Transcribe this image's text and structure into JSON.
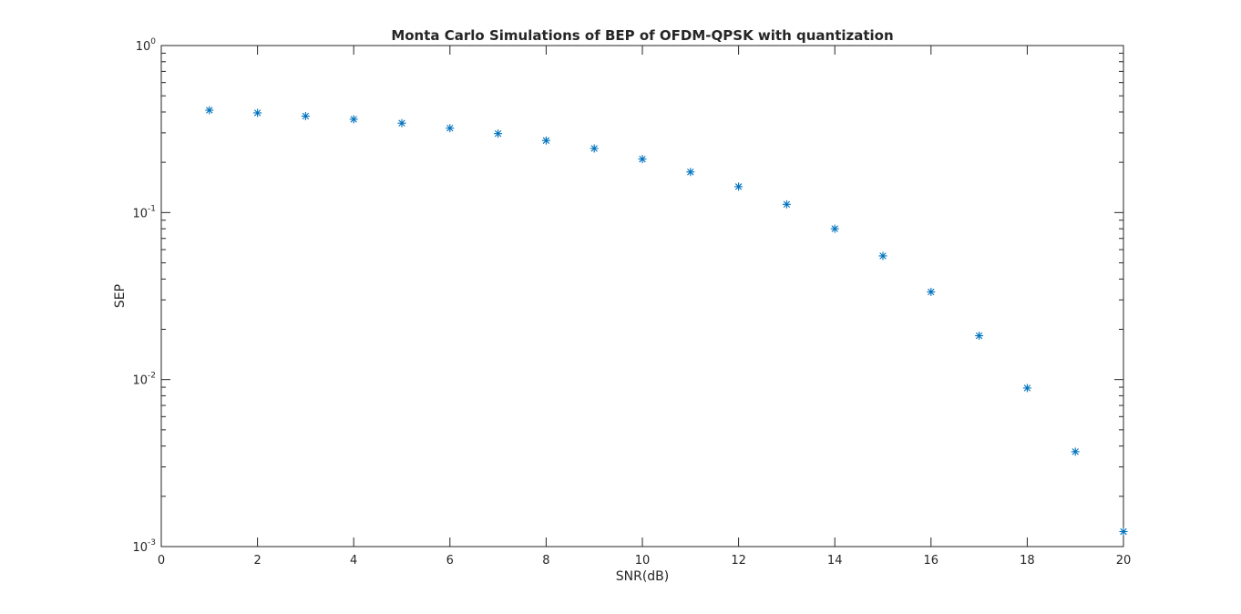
{
  "chart_data": {
    "type": "scatter",
    "title": "Monta Carlo Simulations of BEP of OFDM-QPSK with quantization",
    "xlabel": "SNR(dB)",
    "ylabel": "SEP",
    "xlim": [
      0,
      20
    ],
    "ylim": [
      0.001,
      1
    ],
    "yscale": "log",
    "grid": false,
    "marker": "*",
    "color": "#0072BD",
    "x_ticks": [
      0,
      2,
      4,
      6,
      8,
      10,
      12,
      14,
      16,
      18,
      20
    ],
    "x_tick_labels": [
      "0",
      "2",
      "4",
      "6",
      "8",
      "10",
      "12",
      "14",
      "16",
      "18",
      "20"
    ],
    "y_ticks": [
      1,
      0.1,
      0.01,
      0.001
    ],
    "y_tick_labels": [
      {
        "base": "10",
        "exp": "0"
      },
      {
        "base": "10",
        "exp": "-1"
      },
      {
        "base": "10",
        "exp": "-2"
      },
      {
        "base": "10",
        "exp": "-3"
      }
    ],
    "series": [
      {
        "x": [
          1,
          2,
          3,
          4,
          5,
          6,
          7,
          8,
          9,
          10,
          11,
          12,
          13,
          14,
          15,
          16,
          17,
          18,
          19,
          20
        ],
        "y": [
          0.41,
          0.395,
          0.378,
          0.362,
          0.343,
          0.32,
          0.297,
          0.27,
          0.242,
          0.209,
          0.175,
          0.143,
          0.112,
          0.08,
          0.055,
          0.0335,
          0.0183,
          0.0089,
          0.0037,
          0.00123
        ]
      }
    ]
  }
}
